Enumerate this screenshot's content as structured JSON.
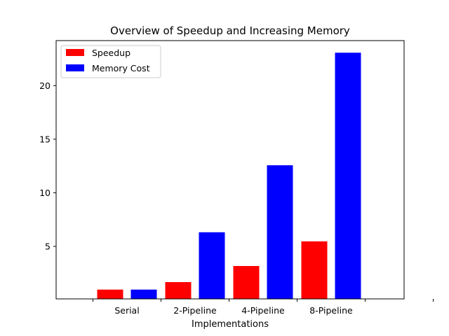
{
  "chart_data": {
    "type": "bar",
    "title": "Overview of Speedup and Increasing Memory",
    "xlabel": "Implementations",
    "ylabel": "",
    "categories": [
      "Serial",
      "2-Pipeline",
      "4-Pipeline",
      "8-Pipeline"
    ],
    "series": [
      {
        "name": "Speedup",
        "color": "#ff0000",
        "values": [
          1.0,
          1.7,
          3.2,
          5.5
        ]
      },
      {
        "name": "Memory Cost",
        "color": "#0000ff",
        "values": [
          1.0,
          6.35,
          12.6,
          23.1
        ]
      }
    ],
    "ylim": [
      0.1,
      24.2
    ],
    "yticks": [
      5,
      10,
      15,
      20
    ],
    "legend_position": "top-left",
    "grid": false
  }
}
